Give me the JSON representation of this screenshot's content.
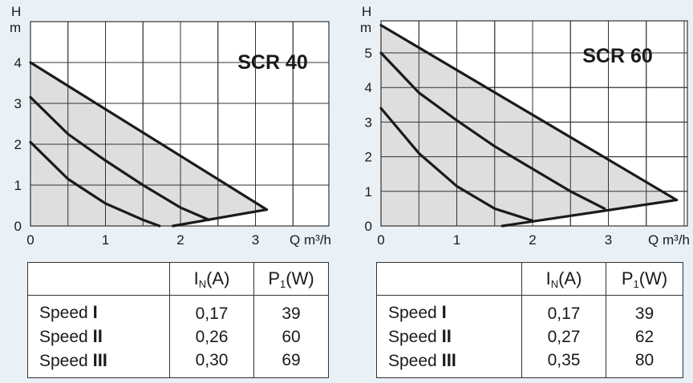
{
  "colors": {
    "background": "#e9f1f7",
    "plot_fill": "#ffffff",
    "area_fill": "#dedede",
    "curve": "#1a1a1a"
  },
  "chart_data": [
    {
      "type": "line",
      "title": "SCR 40",
      "ylabel_top": "H",
      "ylabel_bottom": "m",
      "xlabel": "Q m³/h",
      "xlim": [
        0,
        4
      ],
      "ylim": [
        0,
        5
      ],
      "xticks": [
        "0",
        "1",
        "2",
        "3"
      ],
      "yticks": [
        "0",
        "1",
        "2",
        "3",
        "4"
      ],
      "grid": true,
      "series": [
        {
          "x": [
            0,
            0.5,
            1.0,
            1.5,
            1.72
          ],
          "y": [
            2.05,
            1.15,
            0.55,
            0.15,
            0.0
          ]
        },
        {
          "x": [
            0,
            0.5,
            1.0,
            1.5,
            2.0,
            2.38
          ],
          "y": [
            3.15,
            2.25,
            1.6,
            1.0,
            0.45,
            0.15
          ]
        },
        {
          "x": [
            0,
            3.15
          ],
          "y": [
            4.0,
            0.4
          ]
        },
        {
          "x": [
            1.9,
            3.15
          ],
          "y": [
            0.0,
            0.4
          ]
        }
      ],
      "table": {
        "headers": {
          "current": "I",
          "current_sub": "N",
          "current_unit": "(A)",
          "power": "P",
          "power_sub": "1",
          "power_unit": "(W)"
        },
        "rows": [
          {
            "label": "Speed",
            "speed": "I",
            "current": "0,17",
            "power": "39"
          },
          {
            "label": "Speed",
            "speed": "II",
            "current": "0,26",
            "power": "60"
          },
          {
            "label": "Speed",
            "speed": "III",
            "current": "0,30",
            "power": "69"
          }
        ]
      }
    },
    {
      "type": "line",
      "title": "SCR 60",
      "ylabel_top": "H",
      "ylabel_bottom": "m",
      "xlabel": "Q m³/h",
      "xlim": [
        0,
        4
      ],
      "ylim": [
        0,
        6
      ],
      "xticks": [
        "0",
        "1",
        "2",
        "3"
      ],
      "yticks": [
        "0",
        "1",
        "2",
        "3",
        "4",
        "5"
      ],
      "grid": true,
      "series": [
        {
          "x": [
            0,
            0.5,
            1.0,
            1.5,
            2.0
          ],
          "y": [
            3.4,
            2.1,
            1.15,
            0.5,
            0.15
          ]
        },
        {
          "x": [
            0,
            0.5,
            1.0,
            1.5,
            2.0,
            2.5,
            2.95
          ],
          "y": [
            5.0,
            3.85,
            3.05,
            2.3,
            1.65,
            1.0,
            0.5
          ]
        },
        {
          "x": [
            0,
            3.9
          ],
          "y": [
            5.8,
            0.75
          ]
        },
        {
          "x": [
            1.6,
            3.9
          ],
          "y": [
            0.0,
            0.75
          ]
        }
      ],
      "table": {
        "headers": {
          "current": "I",
          "current_sub": "N",
          "current_unit": "(A)",
          "power": "P",
          "power_sub": "1",
          "power_unit": "(W)"
        },
        "rows": [
          {
            "label": "Speed",
            "speed": "I",
            "current": "0,17",
            "power": "39"
          },
          {
            "label": "Speed",
            "speed": "II",
            "current": "0,27",
            "power": "62"
          },
          {
            "label": "Speed",
            "speed": "III",
            "current": "0,35",
            "power": "80"
          }
        ]
      }
    }
  ]
}
